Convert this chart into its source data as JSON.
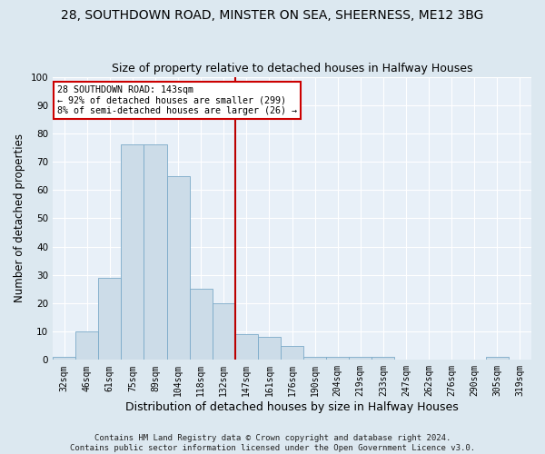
{
  "title1": "28, SOUTHDOWN ROAD, MINSTER ON SEA, SHEERNESS, ME12 3BG",
  "title2": "Size of property relative to detached houses in Halfway Houses",
  "xlabel": "Distribution of detached houses by size in Halfway Houses",
  "ylabel": "Number of detached properties",
  "categories": [
    "32sqm",
    "46sqm",
    "61sqm",
    "75sqm",
    "89sqm",
    "104sqm",
    "118sqm",
    "132sqm",
    "147sqm",
    "161sqm",
    "176sqm",
    "190sqm",
    "204sqm",
    "219sqm",
    "233sqm",
    "247sqm",
    "262sqm",
    "276sqm",
    "290sqm",
    "305sqm",
    "319sqm"
  ],
  "values": [
    1,
    10,
    29,
    76,
    76,
    65,
    25,
    20,
    9,
    8,
    5,
    1,
    1,
    1,
    1,
    0,
    0,
    0,
    0,
    1,
    0
  ],
  "bar_color": "#ccdce8",
  "bar_edge_color": "#7baac8",
  "vline_color": "#bb0000",
  "vline_x_index": 7.5,
  "ylim": [
    0,
    100
  ],
  "yticks": [
    0,
    10,
    20,
    30,
    40,
    50,
    60,
    70,
    80,
    90,
    100
  ],
  "annotation_title": "28 SOUTHDOWN ROAD: 143sqm",
  "annotation_line1": "← 92% of detached houses are smaller (299)",
  "annotation_line2": "8% of semi-detached houses are larger (26) →",
  "annotation_box_color": "#cc0000",
  "footer1": "Contains HM Land Registry data © Crown copyright and database right 2024.",
  "footer2": "Contains public sector information licensed under the Open Government Licence v3.0.",
  "bg_color": "#dce8f0",
  "plot_bg_color": "#e8f0f8",
  "title1_fontsize": 10,
  "title2_fontsize": 9,
  "xlabel_fontsize": 9,
  "ylabel_fontsize": 8.5,
  "tick_fontsize": 7,
  "footer_fontsize": 6.5
}
